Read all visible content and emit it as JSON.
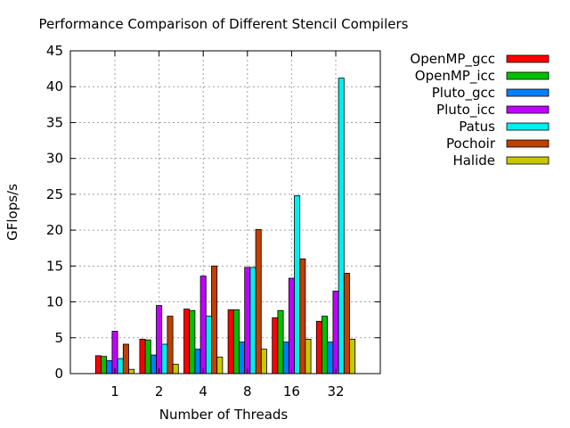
{
  "chart_data": {
    "type": "bar",
    "title": "Performance Comparison of Different Stencil Compilers",
    "xlabel": "Number of Threads",
    "ylabel": "GFlops/s",
    "ylim": [
      0,
      45
    ],
    "yticks": [
      0,
      5,
      10,
      15,
      20,
      25,
      30,
      35,
      40,
      45
    ],
    "grid": true,
    "legend_position": "outside-right",
    "categories": [
      "1",
      "2",
      "4",
      "8",
      "16",
      "32"
    ],
    "series": [
      {
        "name": "OpenMP_gcc",
        "color": "#ff0000",
        "values": [
          2.5,
          4.8,
          9.0,
          8.9,
          7.8,
          7.3
        ]
      },
      {
        "name": "OpenMP_icc",
        "color": "#00c000",
        "values": [
          2.4,
          4.7,
          8.8,
          8.9,
          8.8,
          8.0
        ]
      },
      {
        "name": "Pluto_gcc",
        "color": "#0080ff",
        "values": [
          1.8,
          2.6,
          3.4,
          4.4,
          4.4,
          4.4
        ]
      },
      {
        "name": "Pluto_icc",
        "color": "#c000ff",
        "values": [
          5.9,
          9.5,
          13.6,
          14.8,
          13.3,
          11.5
        ]
      },
      {
        "name": "Patus",
        "color": "#00eeee",
        "values": [
          2.1,
          4.1,
          8.0,
          14.8,
          24.8,
          41.2
        ]
      },
      {
        "name": "Pochoir",
        "color": "#c04000",
        "values": [
          4.1,
          8.0,
          15.0,
          20.1,
          16.0,
          14.0
        ]
      },
      {
        "name": "Halide",
        "color": "#c8c800",
        "values": [
          0.6,
          1.3,
          2.3,
          3.4,
          4.8,
          4.8
        ]
      }
    ]
  }
}
